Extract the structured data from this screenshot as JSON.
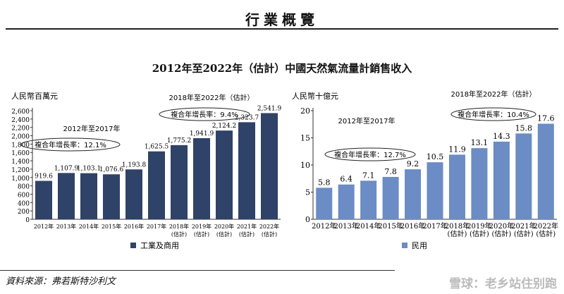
{
  "header": {
    "section": "行業概覽",
    "title": "2012年至2022年（估計）中國天然氣流量計銷售收入"
  },
  "chart_data": [
    {
      "type": "bar",
      "ylabel": "人民幣百萬元",
      "ylim": [
        0,
        2600
      ],
      "yticks": [
        0,
        200,
        400,
        600,
        800,
        "1,000",
        "1,200",
        "1,400",
        "1,600",
        "1,800",
        "2,000",
        "2,200",
        "2,400",
        "2,600"
      ],
      "categories": [
        "2012年",
        "2013年",
        "2014年",
        "2015年",
        "2016年",
        "2017年",
        "2018年\n(估計)",
        "2019年\n(估計)",
        "2020年\n(估計)",
        "2021年\n(估計)",
        "2022年\n(估計)"
      ],
      "series": [
        {
          "name": "工業及商用",
          "values": [
            919.6,
            1107.9,
            1103.1,
            1076.6,
            1193.8,
            1625.5,
            1775.2,
            1941.9,
            2124.2,
            2323.7,
            2541.9
          ]
        }
      ],
      "data_labels": [
        "919.6",
        "1,107.9",
        "1,103.1",
        "1,076.6",
        "1,193.8",
        "1,625.5",
        "1,775.2",
        "1,941.9",
        "2,124.2",
        "2,323.7",
        "2,541.9"
      ],
      "color": "#2f4268",
      "legend": "bottom",
      "annotations": [
        {
          "period": "2012年至2017年",
          "text": "複合年增長率：12.1%"
        },
        {
          "period": "2018年至2022年（估計）",
          "text": "複合年增長率：9.4%"
        }
      ]
    },
    {
      "type": "bar",
      "ylabel": "人民幣十億元",
      "ylim": [
        0,
        20
      ],
      "yticks": [
        0,
        5,
        10,
        15,
        20
      ],
      "categories": [
        "2012年",
        "2013年",
        "2014年",
        "2015年",
        "2016年",
        "2017年",
        "2018年\n(估計)",
        "2019年\n(估計)",
        "2020年\n(估計)",
        "2021年\n(估計)",
        "2022年\n(估計)"
      ],
      "series": [
        {
          "name": "民用",
          "values": [
            5.8,
            6.4,
            7.1,
            7.8,
            9.2,
            10.5,
            11.9,
            13.1,
            14.3,
            15.8,
            17.6
          ]
        }
      ],
      "data_labels": [
        "5.8",
        "6.4",
        "7.1",
        "7.8",
        "9.2",
        "10.5",
        "11.9",
        "13.1",
        "14.3",
        "15.8",
        "17.6"
      ],
      "color": "#6b8cc4",
      "legend": "bottom",
      "annotations": [
        {
          "period": "2012年至2017年",
          "text": "複合年增長率：12.7%"
        },
        {
          "period": "2018年至2022年（估計）",
          "text": "複合年增長率：10.4%"
        }
      ]
    }
  ],
  "footer": {
    "source": "資料來源：弗若斯特沙利文",
    "watermark": "雪球：老乡站住别跑"
  }
}
